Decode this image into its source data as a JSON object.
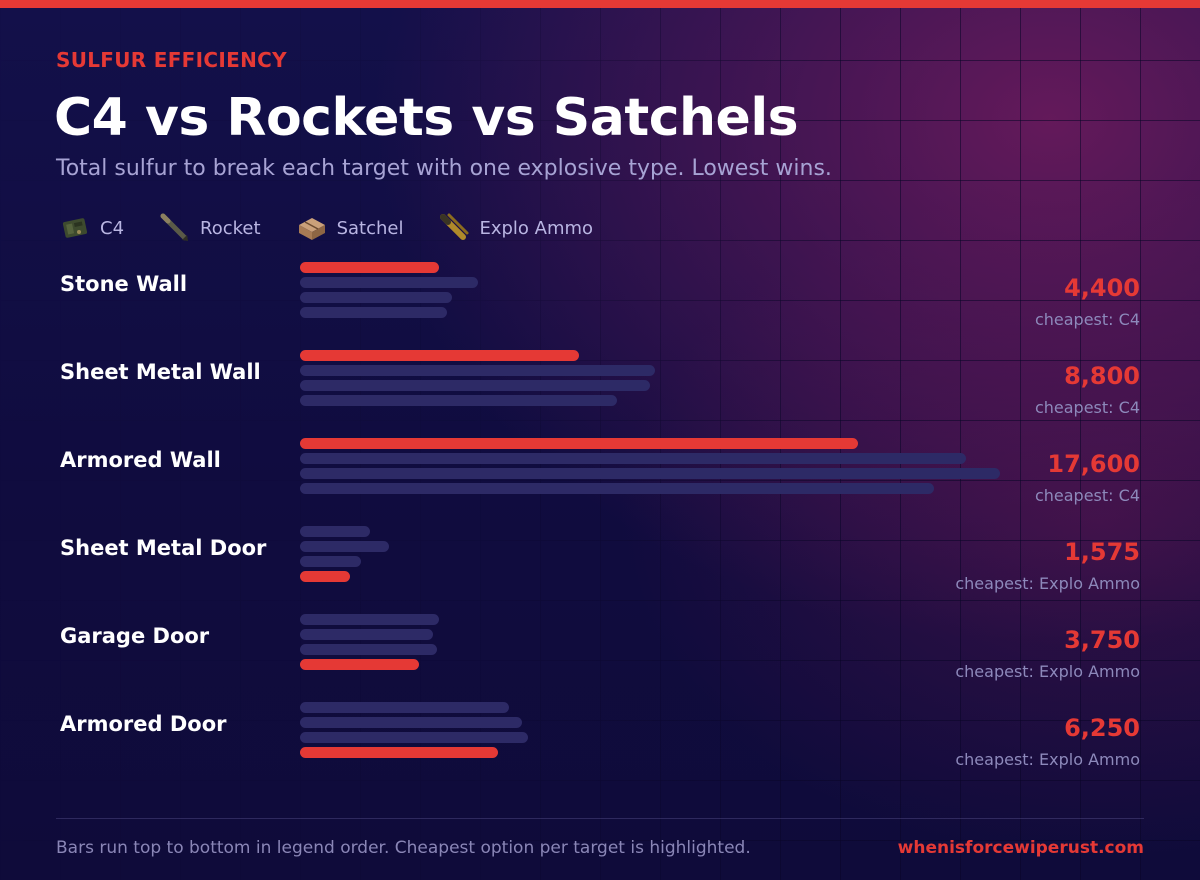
{
  "header": {
    "eyebrow": "SULFUR EFFICIENCY",
    "title": "C4 vs Rockets vs Satchels",
    "subtitle": "Total sulfur to break each target with one explosive type. Lowest wins."
  },
  "legend": [
    {
      "label": "C4",
      "icon": "c4-icon"
    },
    {
      "label": "Rocket",
      "icon": "rocket-icon"
    },
    {
      "label": "Satchel",
      "icon": "satchel-icon"
    },
    {
      "label": "Explo Ammo",
      "icon": "explo-ammo-icon"
    }
  ],
  "colors": {
    "highlight": "#e53935",
    "bar": "#2d2a66",
    "accent_bar": "#e53935"
  },
  "chart_data": {
    "type": "bar",
    "orientation": "horizontal",
    "title": "C4 vs Rockets vs Satchels",
    "subtitle": "Total sulfur to break each target with one explosive type. Lowest wins.",
    "categories": [
      "Stone Wall",
      "Sheet Metal Wall",
      "Armored Wall",
      "Sheet Metal Door",
      "Garage Door",
      "Armored Door"
    ],
    "series": [
      {
        "name": "C4",
        "values": [
          4400,
          8800,
          17600,
          2200,
          4400,
          6600
        ]
      },
      {
        "name": "Rocket",
        "values": [
          5600,
          11200,
          21000,
          2800,
          4200,
          7000
        ]
      },
      {
        "name": "Satchel",
        "values": [
          4800,
          11040,
          22080,
          1920,
          4320,
          7200
        ]
      },
      {
        "name": "Explo Ammo",
        "values": [
          4650,
          10000,
          20000,
          1575,
          3750,
          6250
        ]
      }
    ],
    "cheapest": [
      {
        "value": "4,400",
        "note": "cheapest: C4",
        "series_index": 0
      },
      {
        "value": "8,800",
        "note": "cheapest: C4",
        "series_index": 0
      },
      {
        "value": "17,600",
        "note": "cheapest: C4",
        "series_index": 0
      },
      {
        "value": "1,575",
        "note": "cheapest: Explo Ammo",
        "series_index": 3
      },
      {
        "value": "3,750",
        "note": "cheapest: Explo Ammo",
        "series_index": 3
      },
      {
        "value": "6,250",
        "note": "cheapest: Explo Ammo",
        "series_index": 3
      }
    ],
    "xlim": [
      0,
      22080
    ],
    "grid": false,
    "legend_position": "top-left"
  },
  "footer": {
    "note": "Bars run top to bottom in legend order. Cheapest option per target is highlighted.",
    "site": "whenisforcewiperust.com"
  }
}
